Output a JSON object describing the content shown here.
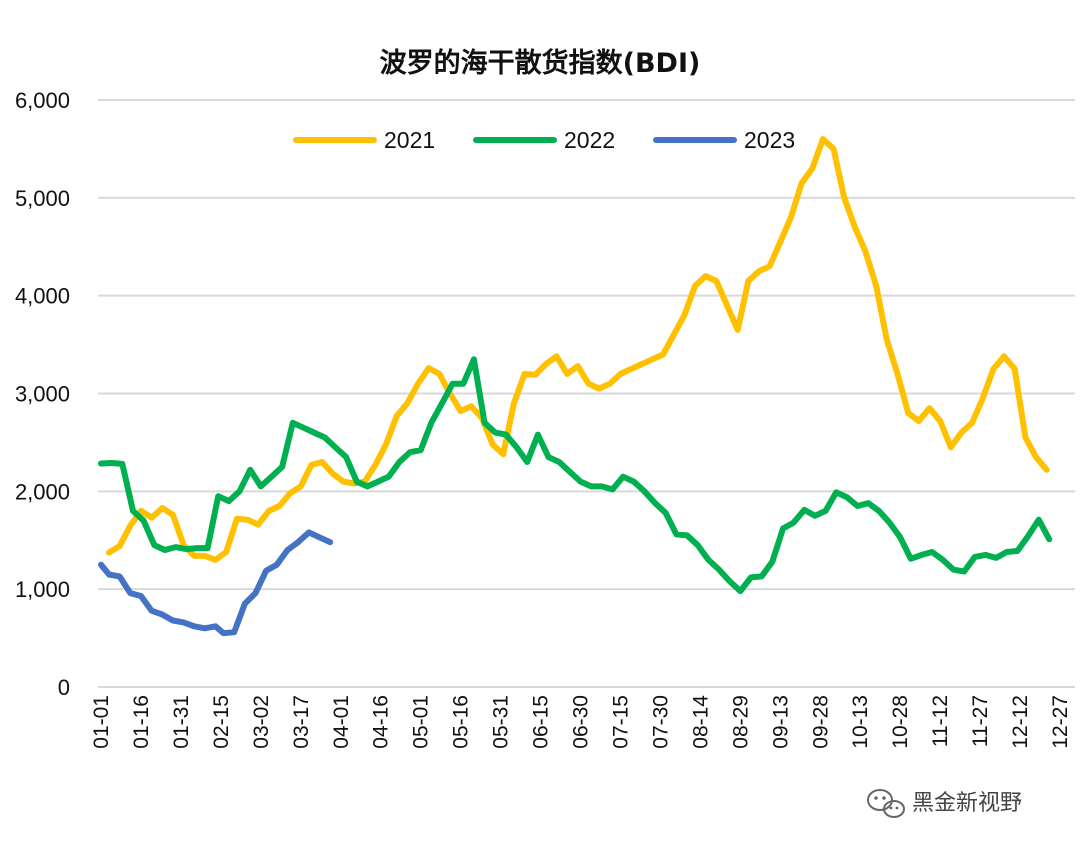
{
  "chart_data": {
    "type": "line",
    "title": "波罗的海干散货指数(BDI)",
    "ylim": [
      0,
      6000
    ],
    "y_ticks": [
      "0",
      "1,000",
      "2,000",
      "3,000",
      "4,000",
      "5,000",
      "6,000"
    ],
    "x_ticks": [
      "01-01",
      "01-16",
      "01-31",
      "02-15",
      "03-02",
      "03-17",
      "04-01",
      "04-16",
      "05-01",
      "05-16",
      "05-31",
      "06-15",
      "06-30",
      "07-15",
      "07-30",
      "08-14",
      "08-29",
      "09-13",
      "09-28",
      "10-13",
      "10-28",
      "11-12",
      "11-27",
      "12-12",
      "12-27"
    ],
    "x_label_rotation": -90,
    "grid": "horizontal",
    "legend_position": "top-center",
    "series": [
      {
        "name": "2021",
        "color": "#FFC000",
        "points": [
          [
            "01-04",
            1374
          ],
          [
            "01-08",
            1440
          ],
          [
            "01-12",
            1650
          ],
          [
            "01-16",
            1800
          ],
          [
            "01-20",
            1730
          ],
          [
            "01-24",
            1830
          ],
          [
            "01-28",
            1760
          ],
          [
            "02-01",
            1450
          ],
          [
            "02-05",
            1340
          ],
          [
            "02-09",
            1340
          ],
          [
            "02-13",
            1300
          ],
          [
            "02-17",
            1380
          ],
          [
            "02-21",
            1720
          ],
          [
            "02-25",
            1710
          ],
          [
            "03-01",
            1660
          ],
          [
            "03-05",
            1800
          ],
          [
            "03-09",
            1850
          ],
          [
            "03-13",
            1980
          ],
          [
            "03-17",
            2050
          ],
          [
            "03-21",
            2270
          ],
          [
            "03-25",
            2300
          ],
          [
            "03-29",
            2180
          ],
          [
            "04-02",
            2100
          ],
          [
            "04-06",
            2080
          ],
          [
            "04-10",
            2100
          ],
          [
            "04-14",
            2270
          ],
          [
            "04-18",
            2480
          ],
          [
            "04-22",
            2770
          ],
          [
            "04-26",
            2900
          ],
          [
            "04-30",
            3100
          ],
          [
            "05-04",
            3260
          ],
          [
            "05-08",
            3200
          ],
          [
            "05-12",
            3000
          ],
          [
            "05-16",
            2820
          ],
          [
            "05-20",
            2870
          ],
          [
            "05-24",
            2750
          ],
          [
            "05-28",
            2480
          ],
          [
            "06-01",
            2380
          ],
          [
            "06-05",
            2900
          ],
          [
            "06-09",
            3200
          ],
          [
            "06-13",
            3190
          ],
          [
            "06-17",
            3300
          ],
          [
            "06-21",
            3380
          ],
          [
            "06-25",
            3200
          ],
          [
            "06-29",
            3280
          ],
          [
            "07-03",
            3100
          ],
          [
            "07-07",
            3050
          ],
          [
            "07-11",
            3100
          ],
          [
            "07-15",
            3200
          ],
          [
            "07-19",
            3250
          ],
          [
            "07-23",
            3300
          ],
          [
            "07-27",
            3350
          ],
          [
            "07-31",
            3400
          ],
          [
            "08-04",
            3600
          ],
          [
            "08-08",
            3800
          ],
          [
            "08-12",
            4100
          ],
          [
            "08-16",
            4200
          ],
          [
            "08-20",
            4150
          ],
          [
            "08-24",
            3900
          ],
          [
            "08-28",
            3650
          ],
          [
            "09-01",
            4150
          ],
          [
            "09-05",
            4250
          ],
          [
            "09-09",
            4300
          ],
          [
            "09-13",
            4550
          ],
          [
            "09-17",
            4800
          ],
          [
            "09-21",
            5150
          ],
          [
            "09-25",
            5300
          ],
          [
            "09-29",
            5600
          ],
          [
            "10-03",
            5500
          ],
          [
            "10-07",
            5000
          ],
          [
            "10-11",
            4700
          ],
          [
            "10-15",
            4450
          ],
          [
            "10-19",
            4100
          ],
          [
            "10-23",
            3550
          ],
          [
            "10-27",
            3200
          ],
          [
            "10-31",
            2800
          ],
          [
            "11-04",
            2720
          ],
          [
            "11-08",
            2850
          ],
          [
            "11-12",
            2720
          ],
          [
            "11-16",
            2450
          ],
          [
            "11-20",
            2600
          ],
          [
            "11-24",
            2700
          ],
          [
            "11-28",
            2950
          ],
          [
            "12-02",
            3250
          ],
          [
            "12-06",
            3380
          ],
          [
            "12-10",
            3250
          ],
          [
            "12-14",
            2550
          ],
          [
            "12-18",
            2350
          ],
          [
            "12-22",
            2220
          ]
        ]
      },
      {
        "name": "2022",
        "color": "#00B050",
        "points": [
          [
            "01-01",
            2285
          ],
          [
            "01-05",
            2290
          ],
          [
            "01-09",
            2280
          ],
          [
            "01-13",
            1800
          ],
          [
            "01-17",
            1700
          ],
          [
            "01-21",
            1450
          ],
          [
            "01-25",
            1400
          ],
          [
            "01-29",
            1430
          ],
          [
            "02-02",
            1410
          ],
          [
            "02-06",
            1420
          ],
          [
            "02-10",
            1420
          ],
          [
            "02-14",
            1950
          ],
          [
            "02-18",
            1900
          ],
          [
            "02-22",
            2000
          ],
          [
            "02-26",
            2220
          ],
          [
            "03-02",
            2050
          ],
          [
            "03-06",
            2150
          ],
          [
            "03-10",
            2250
          ],
          [
            "03-14",
            2700
          ],
          [
            "03-18",
            2650
          ],
          [
            "03-22",
            2600
          ],
          [
            "03-26",
            2550
          ],
          [
            "03-30",
            2450
          ],
          [
            "04-03",
            2350
          ],
          [
            "04-07",
            2100
          ],
          [
            "04-11",
            2050
          ],
          [
            "04-15",
            2100
          ],
          [
            "04-19",
            2150
          ],
          [
            "04-23",
            2300
          ],
          [
            "04-27",
            2400
          ],
          [
            "05-01",
            2420
          ],
          [
            "05-05",
            2700
          ],
          [
            "05-09",
            2900
          ],
          [
            "05-13",
            3100
          ],
          [
            "05-17",
            3100
          ],
          [
            "05-21",
            3350
          ],
          [
            "05-25",
            2700
          ],
          [
            "05-29",
            2600
          ],
          [
            "06-02",
            2580
          ],
          [
            "06-06",
            2450
          ],
          [
            "06-10",
            2300
          ],
          [
            "06-14",
            2580
          ],
          [
            "06-18",
            2350
          ],
          [
            "06-22",
            2300
          ],
          [
            "06-26",
            2200
          ],
          [
            "06-30",
            2100
          ],
          [
            "07-04",
            2050
          ],
          [
            "07-08",
            2050
          ],
          [
            "07-12",
            2020
          ],
          [
            "07-16",
            2150
          ],
          [
            "07-20",
            2100
          ],
          [
            "07-24",
            2000
          ],
          [
            "07-28",
            1880
          ],
          [
            "08-01",
            1780
          ],
          [
            "08-05",
            1560
          ],
          [
            "08-09",
            1550
          ],
          [
            "08-13",
            1450
          ],
          [
            "08-17",
            1300
          ],
          [
            "08-21",
            1200
          ],
          [
            "08-25",
            1080
          ],
          [
            "08-29",
            980
          ],
          [
            "09-02",
            1120
          ],
          [
            "09-06",
            1130
          ],
          [
            "09-10",
            1280
          ],
          [
            "09-14",
            1620
          ],
          [
            "09-18",
            1680
          ],
          [
            "09-22",
            1810
          ],
          [
            "09-26",
            1750
          ],
          [
            "09-30",
            1800
          ],
          [
            "10-04",
            1990
          ],
          [
            "10-08",
            1940
          ],
          [
            "10-12",
            1850
          ],
          [
            "10-16",
            1880
          ],
          [
            "10-20",
            1800
          ],
          [
            "10-24",
            1680
          ],
          [
            "10-28",
            1530
          ],
          [
            "11-01",
            1310
          ],
          [
            "11-05",
            1350
          ],
          [
            "11-09",
            1380
          ],
          [
            "11-13",
            1300
          ],
          [
            "11-17",
            1200
          ],
          [
            "11-21",
            1180
          ],
          [
            "11-25",
            1330
          ],
          [
            "11-29",
            1350
          ],
          [
            "12-03",
            1320
          ],
          [
            "12-07",
            1380
          ],
          [
            "12-11",
            1390
          ],
          [
            "12-15",
            1540
          ],
          [
            "12-19",
            1710
          ],
          [
            "12-23",
            1510
          ]
        ]
      },
      {
        "name": "2023",
        "color": "#4472C4",
        "points": [
          [
            "01-01",
            1250
          ],
          [
            "01-04",
            1150
          ],
          [
            "01-08",
            1130
          ],
          [
            "01-12",
            960
          ],
          [
            "01-16",
            930
          ],
          [
            "01-20",
            780
          ],
          [
            "01-24",
            740
          ],
          [
            "01-28",
            680
          ],
          [
            "02-01",
            660
          ],
          [
            "02-05",
            620
          ],
          [
            "02-09",
            600
          ],
          [
            "02-13",
            620
          ],
          [
            "02-16",
            550
          ],
          [
            "02-20",
            560
          ],
          [
            "02-24",
            850
          ],
          [
            "02-28",
            960
          ],
          [
            "03-04",
            1190
          ],
          [
            "03-08",
            1250
          ],
          [
            "03-12",
            1400
          ],
          [
            "03-16",
            1480
          ],
          [
            "03-20",
            1580
          ],
          [
            "03-24",
            1530
          ],
          [
            "03-28",
            1480
          ]
        ]
      }
    ]
  },
  "watermark": {
    "text": "黑金新视野",
    "icon": "wechat-icon"
  }
}
